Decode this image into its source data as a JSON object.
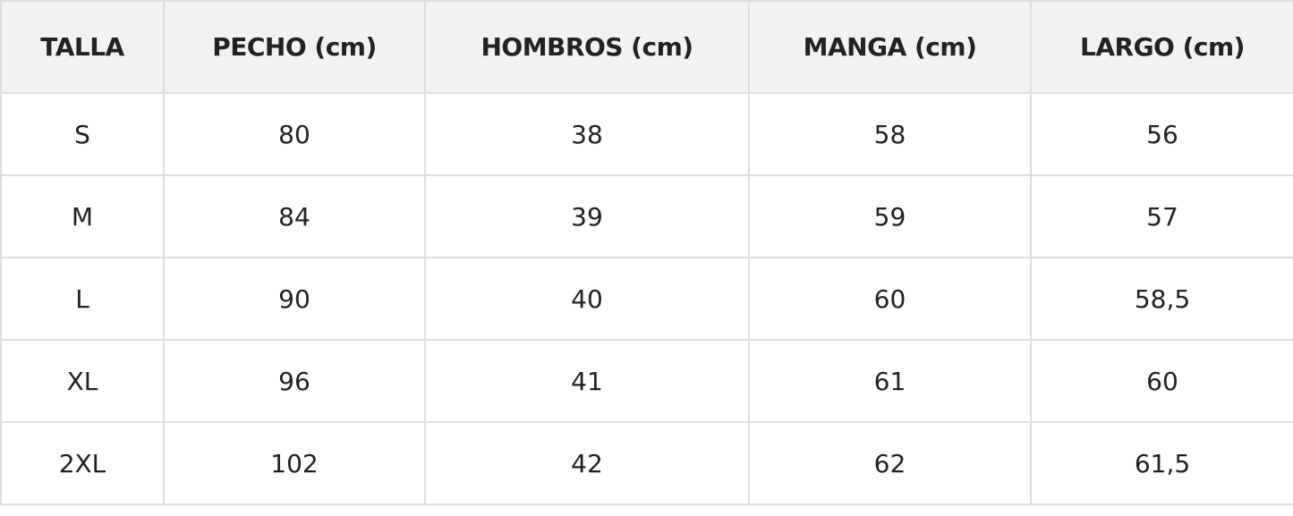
{
  "table": {
    "header": [
      "TALLA",
      "PECHO (cm)",
      "HOMBROS (cm)",
      "MANGA (cm)",
      "LARGO (cm)"
    ],
    "rows": [
      [
        "S",
        "80",
        "38",
        "58",
        "56"
      ],
      [
        "M",
        "84",
        "39",
        "59",
        "57"
      ],
      [
        "L",
        "90",
        "40",
        "60",
        "58,5"
      ],
      [
        "XL",
        "96",
        "41",
        "61",
        "60"
      ],
      [
        "2XL",
        "102",
        "42",
        "62",
        "61,5"
      ]
    ]
  }
}
